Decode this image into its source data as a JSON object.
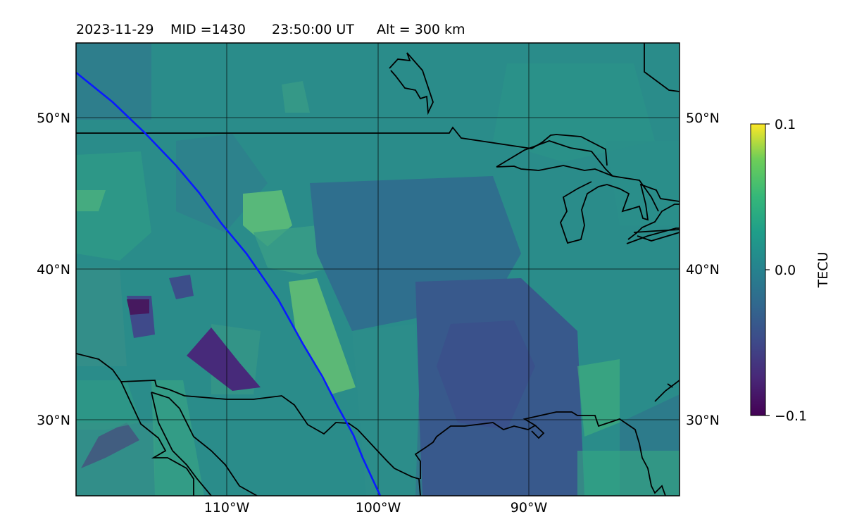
{
  "header": {
    "date": "2023-11-29",
    "mid_label": "MID =1430",
    "time_label": "23:50:00  UT",
    "alt_label": "Alt = 300 km"
  },
  "map": {
    "lat_labels": [
      "50°N",
      "40°N",
      "30°N"
    ],
    "lon_labels": [
      "110°W",
      "100°W",
      "90°W"
    ],
    "background_color": "#2a8c8a",
    "track_color": "#0a1aff"
  },
  "colorbar": {
    "label": "TECU",
    "ticks": [
      "0.1",
      "0.0",
      "−0.1"
    ],
    "colormap": "viridis"
  }
}
